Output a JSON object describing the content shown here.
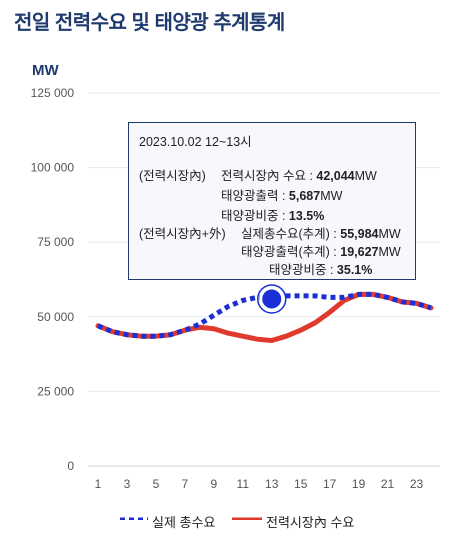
{
  "page": {
    "title": "전일 전력수요 및 태양광 추계통계"
  },
  "chart_data": {
    "type": "line",
    "ylabel": "MW",
    "ylim": [
      0,
      125000
    ],
    "yticks": [
      0,
      25000,
      50000,
      75000,
      100000,
      125000
    ],
    "ytick_labels": [
      "0",
      "25 000",
      "50 000",
      "75 000",
      "100 000",
      "125 000"
    ],
    "xlim": [
      1,
      24
    ],
    "xticks": [
      1,
      3,
      5,
      7,
      9,
      11,
      13,
      15,
      17,
      19,
      21,
      23
    ],
    "xtick_labels": [
      "1",
      "3",
      "5",
      "7",
      "9",
      "11",
      "13",
      "15",
      "17",
      "19",
      "21",
      "23"
    ],
    "grid": true,
    "legend_position": "bottom",
    "x": [
      1,
      2,
      3,
      4,
      5,
      6,
      7,
      8,
      9,
      10,
      11,
      12,
      13,
      14,
      15,
      16,
      17,
      18,
      19,
      20,
      21,
      22,
      23,
      24
    ],
    "series": [
      {
        "name": "실제 총수요",
        "color": "#1a2fd6",
        "style": "dotted",
        "values": [
          47000,
          45000,
          44000,
          43500,
          43500,
          44000,
          45500,
          47500,
          50500,
          53500,
          55500,
          56500,
          56000,
          57000,
          57000,
          57000,
          56500,
          56500,
          57500,
          57500,
          56500,
          55000,
          54500,
          53000
        ]
      },
      {
        "name": "전력시장內 수요",
        "color": "#e03a2e",
        "style": "solid",
        "values": [
          47000,
          45000,
          44000,
          43500,
          43500,
          44000,
          45500,
          46500,
          46000,
          44500,
          43500,
          42500,
          42044,
          43500,
          45500,
          48000,
          51500,
          55500,
          57500,
          57500,
          56500,
          55000,
          54500,
          53000
        ]
      }
    ],
    "highlight": {
      "x": 13,
      "y": 55984
    }
  },
  "tooltip": {
    "date": "2023.10.02 12~13시",
    "market_label": "(전력시장內)",
    "market_demand_label": "전력시장內 수요 : ",
    "market_demand_value": "42,044",
    "market_solar_label": "태양광출력 : ",
    "market_solar_value": "5,687",
    "market_share_label": "태양광비중 : ",
    "market_share_value": "13.5%",
    "total_label": "(전력시장內+外)",
    "total_demand_label": "실제총수요(추계) : ",
    "total_demand_value": "55,984",
    "total_solar_label": "태양광출력(추계) : ",
    "total_solar_value": "19,627",
    "total_share_label": "태양광비중 : ",
    "total_share_value": "35.1%",
    "unit": "MW"
  }
}
